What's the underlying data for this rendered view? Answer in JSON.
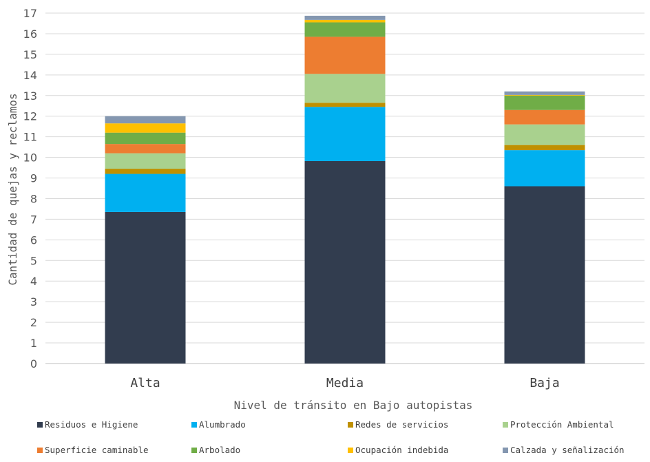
{
  "chart_data": {
    "type": "bar",
    "stacked": true,
    "title": "",
    "xlabel": "Nivel de tránsito en Bajo autopistas",
    "ylabel": "Cantidad de quejas y reclamos",
    "ylim": [
      0,
      17
    ],
    "yticks": [
      "0",
      "1",
      "2",
      "3",
      "4",
      "5",
      "6",
      "7",
      "8",
      "9",
      "10",
      "11",
      "12",
      "13",
      "14",
      "15",
      "16",
      "17"
    ],
    "grid": true,
    "legend_position": "bottom",
    "categories": [
      "Alta",
      "Media",
      "Baja"
    ],
    "series": [
      {
        "name": "Residuos e Higiene",
        "color": "#323d4f",
        "values": [
          7.35,
          9.82,
          8.6
        ]
      },
      {
        "name": "Alumbrado",
        "color": "#00b0f0",
        "values": [
          1.85,
          2.63,
          1.75
        ]
      },
      {
        "name": "Redes de servicios",
        "color": "#bf9000",
        "values": [
          0.25,
          0.2,
          0.25
        ]
      },
      {
        "name": "Protección Ambiental",
        "color": "#a9d18e",
        "values": [
          0.75,
          1.4,
          1.0
        ]
      },
      {
        "name": "Superficie caminable",
        "color": "#ed7d31",
        "values": [
          0.45,
          1.8,
          0.7
        ]
      },
      {
        "name": "Arbolado",
        "color": "#70ad47",
        "values": [
          0.55,
          0.7,
          0.7
        ]
      },
      {
        "name": "Ocupación indebida",
        "color": "#ffc000",
        "values": [
          0.45,
          0.12,
          0.03
        ]
      },
      {
        "name": "Calzada y señalización",
        "color": "#8497b0",
        "values": [
          0.35,
          0.2,
          0.17
        ]
      }
    ]
  }
}
